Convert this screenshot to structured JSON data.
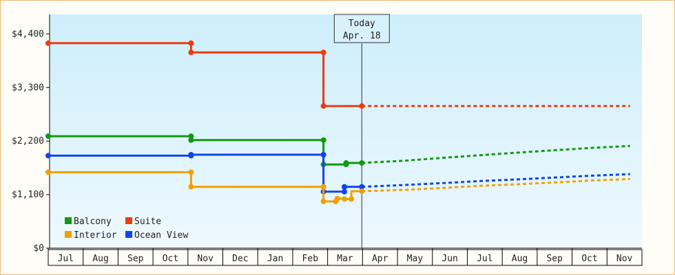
{
  "chart_data": {
    "type": "line",
    "title": "",
    "xlabel": "",
    "ylabel": "",
    "x_start": "Jul",
    "x_months": [
      "Jul",
      "Aug",
      "Sep",
      "Oct",
      "Nov",
      "Dec",
      "Jan",
      "Feb",
      "Mar",
      "Apr",
      "May",
      "Jun",
      "Jul",
      "Aug",
      "Sep",
      "Oct",
      "Nov"
    ],
    "ylim": [
      0,
      4800
    ],
    "y_ticks": [
      0,
      1100,
      2200,
      3300,
      4400
    ],
    "y_tick_labels": [
      "$0",
      "$1,100",
      "$2,200",
      "$3,300",
      "$4,400"
    ],
    "today": {
      "title": "Today",
      "date": "Apr. 18",
      "x": 9.0
    },
    "grid": false,
    "legend_position": "bottom-left",
    "series": [
      {
        "name": "Suite",
        "color": "#ee3a10",
        "points": [
          [
            0,
            4210
          ],
          [
            4.1,
            4210
          ],
          [
            4.1,
            4020
          ],
          [
            7.9,
            4020
          ],
          [
            7.9,
            2920
          ],
          [
            9.0,
            2920
          ]
        ],
        "markers": [
          [
            0,
            4210
          ],
          [
            4.1,
            4210
          ],
          [
            4.1,
            4020
          ],
          [
            7.9,
            4020
          ],
          [
            7.9,
            2920
          ],
          [
            9.0,
            2920
          ]
        ],
        "projection": [
          [
            9.0,
            2920
          ],
          [
            16.7,
            2920
          ]
        ]
      },
      {
        "name": "Balcony",
        "color": "#119911",
        "points": [
          [
            0,
            2300
          ],
          [
            4.1,
            2300
          ],
          [
            4.1,
            2220
          ],
          [
            7.9,
            2220
          ],
          [
            7.9,
            1720
          ],
          [
            8.55,
            1720
          ],
          [
            8.55,
            1750
          ],
          [
            9.0,
            1750
          ]
        ],
        "markers": [
          [
            0,
            2300
          ],
          [
            4.1,
            2300
          ],
          [
            4.1,
            2220
          ],
          [
            7.9,
            2220
          ],
          [
            7.9,
            1720
          ],
          [
            8.55,
            1720
          ],
          [
            8.55,
            1750
          ],
          [
            9.0,
            1750
          ]
        ],
        "projection": [
          [
            9.0,
            1750
          ],
          [
            10.3,
            1800
          ],
          [
            11.4,
            1860
          ],
          [
            12.4,
            1910
          ],
          [
            13.4,
            1960
          ],
          [
            14.5,
            2010
          ],
          [
            15.6,
            2060
          ],
          [
            16.7,
            2100
          ]
        ]
      },
      {
        "name": "Ocean View",
        "color": "#1144ee",
        "points": [
          [
            0,
            1900
          ],
          [
            4.1,
            1900
          ],
          [
            4.1,
            1920
          ],
          [
            7.9,
            1920
          ],
          [
            7.9,
            1160
          ],
          [
            8.5,
            1160
          ],
          [
            8.5,
            1260
          ],
          [
            9.0,
            1260
          ]
        ],
        "markers": [
          [
            0,
            1900
          ],
          [
            4.1,
            1900
          ],
          [
            4.1,
            1920
          ],
          [
            7.9,
            1920
          ],
          [
            7.9,
            1160
          ],
          [
            8.5,
            1160
          ],
          [
            8.5,
            1260
          ],
          [
            9.0,
            1260
          ]
        ],
        "projection": [
          [
            9.0,
            1260
          ],
          [
            10.3,
            1300
          ],
          [
            11.4,
            1340
          ],
          [
            12.4,
            1380
          ],
          [
            13.4,
            1410
          ],
          [
            14.5,
            1450
          ],
          [
            15.6,
            1490
          ],
          [
            16.7,
            1520
          ]
        ]
      },
      {
        "name": "Interior",
        "color": "#f2a000",
        "points": [
          [
            0,
            1560
          ],
          [
            4.1,
            1560
          ],
          [
            4.1,
            1260
          ],
          [
            7.9,
            1260
          ],
          [
            7.9,
            960
          ],
          [
            8.3,
            960
          ],
          [
            8.3,
            1020
          ],
          [
            8.5,
            1020
          ],
          [
            8.5,
            1010
          ],
          [
            8.7,
            1010
          ],
          [
            8.7,
            1170
          ],
          [
            9.0,
            1170
          ]
        ],
        "markers": [
          [
            0,
            1560
          ],
          [
            4.1,
            1560
          ],
          [
            4.1,
            1260
          ],
          [
            7.9,
            1260
          ],
          [
            7.9,
            960
          ],
          [
            8.25,
            960
          ],
          [
            8.3,
            1020
          ],
          [
            8.5,
            1010
          ],
          [
            8.7,
            1010
          ],
          [
            9.0,
            1170
          ]
        ],
        "projection": [
          [
            9.0,
            1170
          ],
          [
            10.3,
            1200
          ],
          [
            11.4,
            1240
          ],
          [
            12.4,
            1280
          ],
          [
            13.4,
            1310
          ],
          [
            14.5,
            1350
          ],
          [
            15.6,
            1390
          ],
          [
            16.7,
            1420
          ]
        ]
      }
    ],
    "legend": [
      {
        "name": "Balcony",
        "color": "#119911"
      },
      {
        "name": "Suite",
        "color": "#ee3a10"
      },
      {
        "name": "Interior",
        "color": "#f2a000"
      },
      {
        "name": "Ocean View",
        "color": "#1144ee"
      }
    ]
  }
}
